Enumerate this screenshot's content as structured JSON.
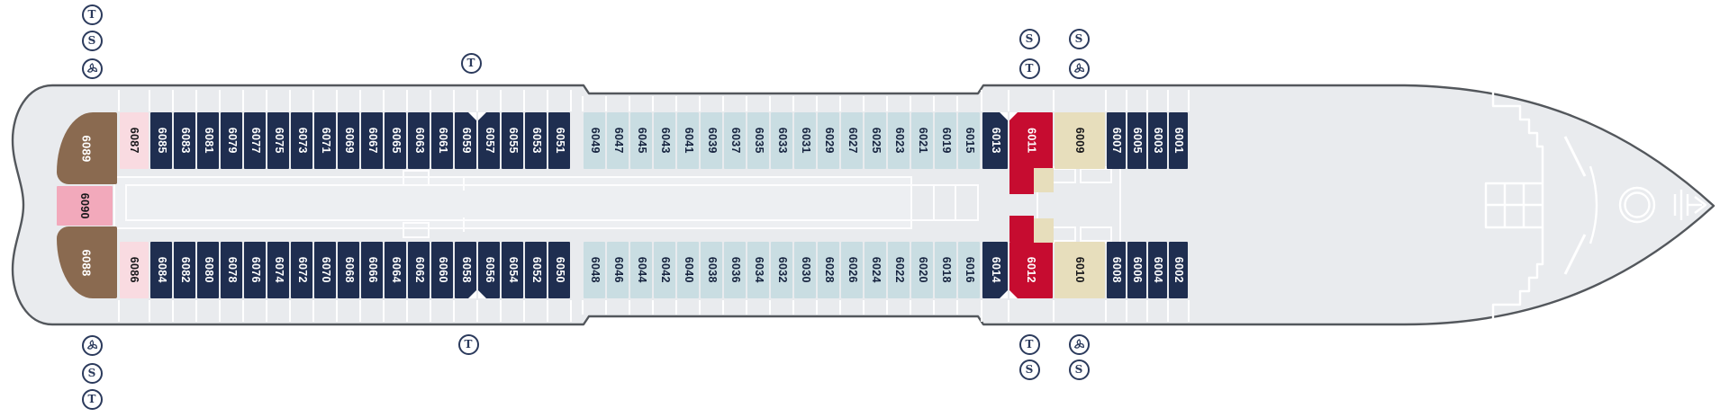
{
  "deck": {
    "colors": {
      "navy": "#1f2e50",
      "blue": "#c9dde2",
      "red": "#c60c30",
      "beige": "#e7debc",
      "brown": "#8a6a50",
      "pink": "#f2a9bb",
      "lightpink": "#f9dbe1",
      "hull_fill": "#e9ebee",
      "hull_outline": "#53575c",
      "corridor_fill": "#eef0f3",
      "structure_white": "#ffffff",
      "icon": "#2b3a5c",
      "textdark": "#16233f"
    },
    "cabins": {
      "top": [
        {
          "num": "6089",
          "type": "brown"
        },
        {
          "num": "6087",
          "type": "lightpink"
        },
        {
          "num": "6085",
          "type": "navy"
        },
        {
          "num": "6083",
          "type": "navy"
        },
        {
          "num": "6081",
          "type": "navy"
        },
        {
          "num": "6079",
          "type": "navy"
        },
        {
          "num": "6077",
          "type": "navy"
        },
        {
          "num": "6075",
          "type": "navy"
        },
        {
          "num": "6073",
          "type": "navy"
        },
        {
          "num": "6071",
          "type": "navy"
        },
        {
          "num": "6069",
          "type": "navy"
        },
        {
          "num": "6067",
          "type": "navy"
        },
        {
          "num": "6065",
          "type": "navy"
        },
        {
          "num": "6063",
          "type": "navy"
        },
        {
          "num": "6061",
          "type": "navy"
        },
        {
          "num": "6059",
          "type": "navy",
          "marker": "tr"
        },
        {
          "num": "6057",
          "type": "navy",
          "marker": "tl"
        },
        {
          "num": "6055",
          "type": "navy"
        },
        {
          "num": "6053",
          "type": "navy"
        },
        {
          "num": "6051",
          "type": "navy"
        },
        {
          "num": "6049",
          "type": "blue"
        },
        {
          "num": "6047",
          "type": "blue"
        },
        {
          "num": "6045",
          "type": "blue"
        },
        {
          "num": "6043",
          "type": "blue"
        },
        {
          "num": "6041",
          "type": "blue"
        },
        {
          "num": "6039",
          "type": "blue"
        },
        {
          "num": "6037",
          "type": "blue"
        },
        {
          "num": "6035",
          "type": "blue"
        },
        {
          "num": "6033",
          "type": "blue"
        },
        {
          "num": "6031",
          "type": "blue"
        },
        {
          "num": "6029",
          "type": "blue"
        },
        {
          "num": "6027",
          "type": "blue"
        },
        {
          "num": "6025",
          "type": "blue"
        },
        {
          "num": "6023",
          "type": "blue"
        },
        {
          "num": "6021",
          "type": "blue"
        },
        {
          "num": "6019",
          "type": "blue"
        },
        {
          "num": "6015",
          "type": "blue"
        },
        {
          "num": "6013",
          "type": "navy",
          "marker": "tr"
        },
        {
          "num": "6011",
          "type": "red",
          "marker": "tl"
        },
        {
          "num": "6009",
          "type": "beige"
        },
        {
          "num": "6007",
          "type": "navy"
        },
        {
          "num": "6005",
          "type": "navy"
        },
        {
          "num": "6003",
          "type": "navy"
        },
        {
          "num": "6001",
          "type": "navy"
        }
      ],
      "bottom": [
        {
          "num": "6088",
          "type": "brown"
        },
        {
          "num": "6086",
          "type": "lightpink"
        },
        {
          "num": "6084",
          "type": "navy"
        },
        {
          "num": "6082",
          "type": "navy"
        },
        {
          "num": "6080",
          "type": "navy"
        },
        {
          "num": "6078",
          "type": "navy"
        },
        {
          "num": "6076",
          "type": "navy"
        },
        {
          "num": "6074",
          "type": "navy"
        },
        {
          "num": "6072",
          "type": "navy"
        },
        {
          "num": "6070",
          "type": "navy"
        },
        {
          "num": "6068",
          "type": "navy"
        },
        {
          "num": "6066",
          "type": "navy"
        },
        {
          "num": "6064",
          "type": "navy"
        },
        {
          "num": "6062",
          "type": "navy"
        },
        {
          "num": "6060",
          "type": "navy"
        },
        {
          "num": "6058",
          "type": "navy",
          "marker": "br"
        },
        {
          "num": "6056",
          "type": "navy",
          "marker": "bl"
        },
        {
          "num": "6054",
          "type": "navy"
        },
        {
          "num": "6052",
          "type": "navy"
        },
        {
          "num": "6050",
          "type": "navy"
        },
        {
          "num": "6048",
          "type": "blue"
        },
        {
          "num": "6046",
          "type": "blue"
        },
        {
          "num": "6044",
          "type": "blue"
        },
        {
          "num": "6042",
          "type": "blue"
        },
        {
          "num": "6040",
          "type": "blue"
        },
        {
          "num": "6038",
          "type": "blue"
        },
        {
          "num": "6036",
          "type": "blue"
        },
        {
          "num": "6034",
          "type": "blue"
        },
        {
          "num": "6032",
          "type": "blue"
        },
        {
          "num": "6030",
          "type": "blue"
        },
        {
          "num": "6028",
          "type": "blue"
        },
        {
          "num": "6026",
          "type": "blue"
        },
        {
          "num": "6024",
          "type": "blue"
        },
        {
          "num": "6022",
          "type": "blue"
        },
        {
          "num": "6020",
          "type": "blue"
        },
        {
          "num": "6018",
          "type": "blue"
        },
        {
          "num": "6016",
          "type": "blue"
        },
        {
          "num": "6014",
          "type": "navy",
          "marker": "br"
        },
        {
          "num": "6012",
          "type": "red",
          "marker": "bl"
        },
        {
          "num": "6010",
          "type": "beige"
        },
        {
          "num": "6008",
          "type": "navy"
        },
        {
          "num": "6006",
          "type": "navy"
        },
        {
          "num": "6004",
          "type": "navy"
        },
        {
          "num": "6002",
          "type": "navy"
        }
      ],
      "mid": {
        "num": "6090",
        "type": "pink"
      }
    },
    "icons": {
      "glyphs": {
        "t": "T",
        "s": "S",
        "pinwheel": "pinwheel"
      },
      "stacks": [
        {
          "id": "stern-top",
          "items": [
            "t",
            "s",
            "pinwheel"
          ]
        },
        {
          "id": "stern-bottom",
          "items": [
            "pinwheel",
            "s",
            "t"
          ]
        },
        {
          "id": "mid-top",
          "items": [
            "t"
          ]
        },
        {
          "id": "mid-bottom",
          "items": [
            "t"
          ]
        },
        {
          "id": "fwd-top-left",
          "items": [
            "s",
            "t"
          ]
        },
        {
          "id": "fwd-top-right",
          "items": [
            "s",
            "pinwheel"
          ]
        },
        {
          "id": "fwd-bottom-left",
          "items": [
            "t",
            "s"
          ]
        },
        {
          "id": "fwd-bottom-right",
          "items": [
            "pinwheel",
            "s"
          ]
        }
      ]
    }
  }
}
